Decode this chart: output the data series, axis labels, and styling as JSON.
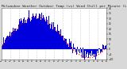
{
  "title": "Milwaukee Weather Outdoor Temp (vs) Wind Chill per Minute (Last 24 Hours)",
  "background_color": "#d8d8d8",
  "plot_background": "#ffffff",
  "y_min": -10,
  "y_max": 40,
  "y_ticks": [
    40,
    35,
    30,
    25,
    20,
    15,
    10,
    5,
    0,
    -5,
    -10
  ],
  "num_points": 1440,
  "bar_color": "#0000dd",
  "line_color": "#ff0000",
  "grid_color": "#aaaaaa",
  "title_color": "#222222",
  "title_fontsize": 3.2,
  "seed": 42
}
